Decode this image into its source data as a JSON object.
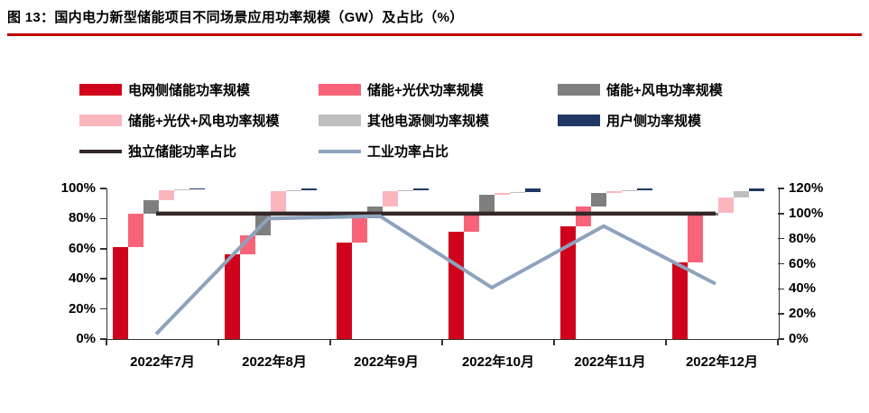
{
  "figure": {
    "title": "图 13：国内电力新型储能项目不同场景应用功率规模（GW）及占比（%）",
    "accent_color": "#c00000"
  },
  "chart_data": {
    "type": "bar",
    "subtype": "per-category stacked waterfall (segments side-by-side, cumulative to 100%) with two overlay lines on right axis",
    "title": "国内电力新型储能项目不同场景应用功率规模（GW）及占比（%）",
    "categories": [
      "2022年7月",
      "2022年8月",
      "2022年9月",
      "2022年10月",
      "2022年11月",
      "2022年12月"
    ],
    "bar_series": [
      {
        "name": "电网侧储能功率规模",
        "color": "#d0031c",
        "values": [
          61,
          56,
          64,
          71,
          75,
          51
        ]
      },
      {
        "name": "储能+光伏功率规模",
        "color": "#f96379",
        "values": [
          22,
          13,
          16,
          12,
          13,
          31
        ]
      },
      {
        "name": "储能+风电功率规模",
        "color": "#7f7f7f",
        "values": [
          9,
          13,
          8,
          13,
          9,
          2
        ]
      },
      {
        "name": "储能+光伏+风电功率规模",
        "color": "#fbb6bd",
        "values": [
          7,
          16,
          10,
          1,
          1,
          10
        ]
      },
      {
        "name": "其他电源侧功率规模",
        "color": "#bfbfbf",
        "values": [
          0.5,
          1,
          1,
          0.5,
          1,
          4
        ]
      },
      {
        "name": "用户侧功率规模",
        "color": "#1f3864",
        "values": [
          0.5,
          1,
          1,
          2.5,
          1,
          2
        ]
      }
    ],
    "line_series": [
      {
        "name": "独立储能功率占比",
        "color": "#332727",
        "axis": "right",
        "values": [
          100,
          100,
          100,
          100,
          100,
          100
        ]
      },
      {
        "name": "工业功率占比",
        "color": "#8da3bd",
        "axis": "right",
        "values": [
          4,
          96,
          98,
          41,
          90,
          44
        ]
      }
    ],
    "left_axis": {
      "ticks": [
        "0%",
        "20%",
        "40%",
        "60%",
        "80%",
        "100%"
      ],
      "min": 0,
      "max": 100,
      "step": 20
    },
    "right_axis": {
      "ticks": [
        "0%",
        "20%",
        "40%",
        "60%",
        "80%",
        "100%",
        "120%"
      ],
      "min": 0,
      "max": 120,
      "step": 20
    },
    "grid": false,
    "legend_position": "top"
  }
}
